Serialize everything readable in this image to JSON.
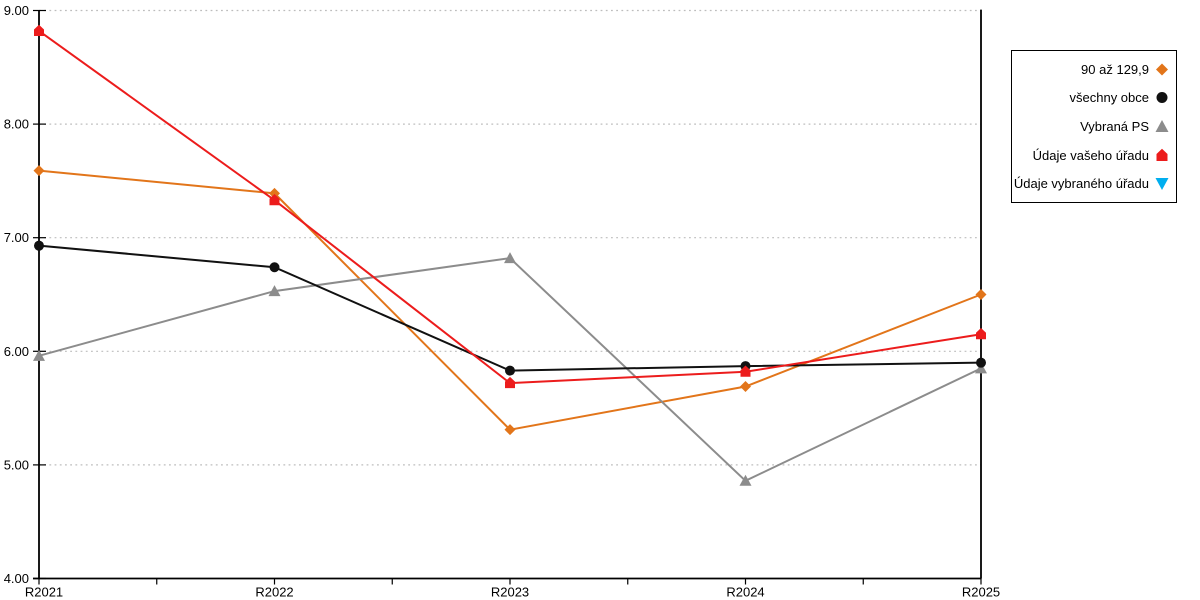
{
  "chart_data": {
    "type": "line",
    "categories": [
      "R2021",
      "R2022",
      "R2023",
      "R2024",
      "R2025"
    ],
    "series": [
      {
        "name": "90 až 129,9",
        "color": "#E2751A",
        "marker": "diamond",
        "values": [
          7.59,
          7.39,
          5.31,
          5.69,
          6.5
        ]
      },
      {
        "name": "všechny obce",
        "color": "#111111",
        "marker": "circle",
        "values": [
          6.93,
          6.74,
          5.83,
          5.87,
          5.9
        ]
      },
      {
        "name": "Vybraná PS",
        "color": "#8C8C8C",
        "marker": "triangle-up",
        "values": [
          5.96,
          6.53,
          6.82,
          4.86,
          5.85
        ]
      },
      {
        "name": "Údaje vašeho úřadu",
        "color": "#EC1C1C",
        "marker": "house",
        "values": [
          8.82,
          7.33,
          5.72,
          5.82,
          6.15
        ]
      },
      {
        "name": "Údaje vybraného úřadu",
        "color": "#00AEEF",
        "marker": "triangle-down",
        "values": []
      }
    ],
    "draw_order": [
      0,
      2,
      1,
      3,
      4
    ],
    "ylim": [
      4,
      9
    ],
    "y_tick_step": 1,
    "y_tick_decimals": 2,
    "x_minor_ticks": true,
    "grid": "horizontal-dotted",
    "grid_color": "#BDBDBD",
    "axis_color": "#000000",
    "legend_position": "right"
  }
}
